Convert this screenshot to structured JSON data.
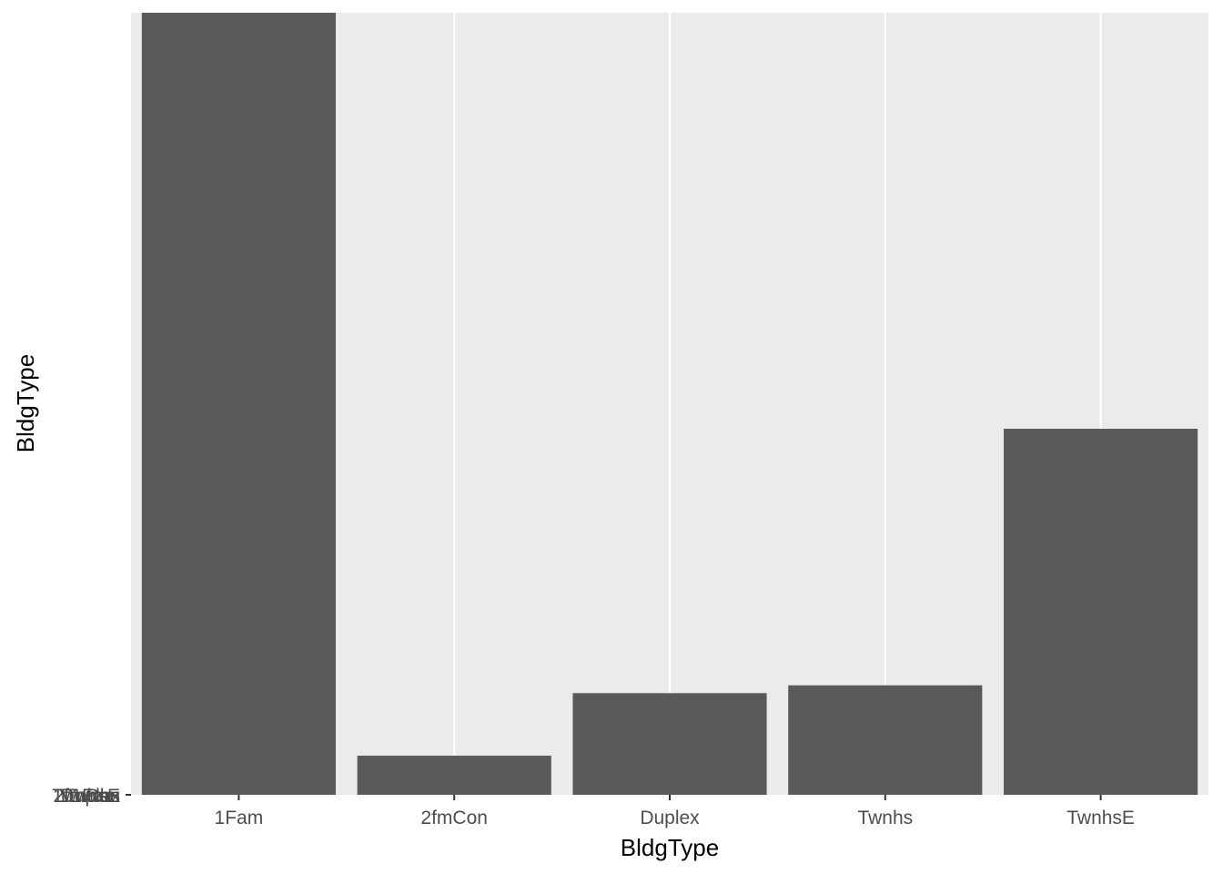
{
  "chart_data": {
    "type": "bar",
    "categories": [
      "1Fam",
      "2fmCon",
      "Duplex",
      "Twnhs",
      "TwnhsE"
    ],
    "values": [
      1.0,
      0.05,
      0.13,
      0.14,
      0.468
    ],
    "title": "",
    "xlabel": "BldgType",
    "ylabel": "BldgType",
    "ylim": [
      0,
      1.0
    ],
    "y_tick_labels": [
      "1Fam",
      "2fmCon",
      "Duplex",
      "Twnhs",
      "TwnhsE"
    ],
    "grid": true,
    "colors": {
      "panel": "#ebebeb",
      "gridline": "#ffffff",
      "bar": "#595959",
      "tick": "#333333"
    }
  }
}
